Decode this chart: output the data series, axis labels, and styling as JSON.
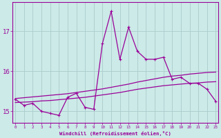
{
  "xlabel": "Windchill (Refroidissement éolien,°C)",
  "hours": [
    0,
    1,
    2,
    3,
    4,
    5,
    6,
    7,
    8,
    9,
    10,
    11,
    12,
    13,
    14,
    15,
    16,
    17,
    18,
    19,
    20,
    21,
    22,
    23
  ],
  "windchill": [
    15.3,
    15.15,
    15.2,
    15.0,
    14.95,
    14.9,
    15.35,
    15.45,
    15.1,
    15.05,
    16.7,
    17.5,
    16.3,
    17.1,
    16.5,
    16.3,
    16.3,
    16.35,
    15.8,
    15.85,
    15.7,
    15.7,
    15.55,
    15.25
  ],
  "line_upper": [
    15.32,
    15.34,
    15.36,
    15.38,
    15.4,
    15.42,
    15.44,
    15.47,
    15.5,
    15.53,
    15.56,
    15.6,
    15.64,
    15.68,
    15.73,
    15.77,
    15.81,
    15.85,
    15.88,
    15.9,
    15.93,
    15.95,
    15.97,
    15.98
  ],
  "line_lower": [
    15.22,
    15.23,
    15.24,
    15.26,
    15.27,
    15.29,
    15.31,
    15.33,
    15.35,
    15.38,
    15.41,
    15.44,
    15.47,
    15.51,
    15.55,
    15.58,
    15.61,
    15.64,
    15.66,
    15.68,
    15.7,
    15.71,
    15.73,
    15.74
  ],
  "line_color": "#990099",
  "bg_color": "#cceae7",
  "grid_color": "#aacccc",
  "ylim_min": 14.72,
  "ylim_max": 17.72,
  "yticks": [
    15,
    16,
    17
  ],
  "xlim_min": -0.3,
  "xlim_max": 23.3
}
